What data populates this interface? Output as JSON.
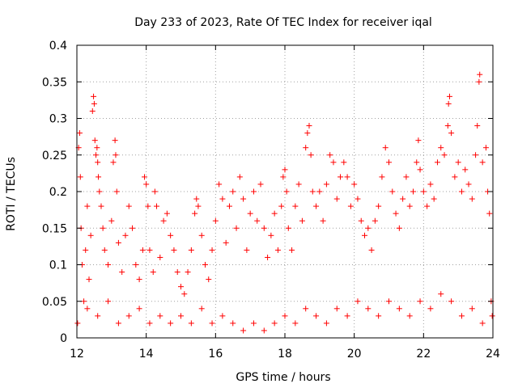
{
  "chart_data": {
    "type": "scatter",
    "title": "Day 233 of 2023, Rate Of TEC Index for receiver iqal",
    "xlabel": "GPS time / hours",
    "ylabel": "ROTI / TECUs",
    "xlim": [
      12,
      24
    ],
    "ylim": [
      0,
      0.4
    ],
    "x_ticks": [
      12,
      14,
      16,
      18,
      20,
      22,
      24
    ],
    "x_tick_labels": [
      "12",
      "14",
      "16",
      "18",
      "20",
      "22",
      "24"
    ],
    "y_ticks": [
      0,
      0.05,
      0.1,
      0.15,
      0.2,
      0.25,
      0.3,
      0.35,
      0.4
    ],
    "y_tick_labels": [
      "0",
      "0.05",
      "0.1",
      "0.15",
      "0.2",
      "0.25",
      "0.3",
      "0.35",
      "0.4"
    ],
    "grid": true,
    "marker": "+",
    "marker_color": "#ff0000",
    "series": [
      {
        "name": "ROTI",
        "points": [
          [
            12.05,
            0.26
          ],
          [
            12.08,
            0.28
          ],
          [
            12.1,
            0.22
          ],
          [
            12.12,
            0.15
          ],
          [
            12.15,
            0.1
          ],
          [
            12.2,
            0.05
          ],
          [
            12.25,
            0.12
          ],
          [
            12.3,
            0.18
          ],
          [
            12.35,
            0.08
          ],
          [
            12.4,
            0.14
          ],
          [
            12.45,
            0.31
          ],
          [
            12.48,
            0.33
          ],
          [
            12.5,
            0.32
          ],
          [
            12.52,
            0.27
          ],
          [
            12.55,
            0.25
          ],
          [
            12.58,
            0.26
          ],
          [
            12.6,
            0.24
          ],
          [
            12.62,
            0.22
          ],
          [
            12.65,
            0.2
          ],
          [
            12.7,
            0.18
          ],
          [
            12.75,
            0.15
          ],
          [
            12.8,
            0.12
          ],
          [
            12.9,
            0.1
          ],
          [
            13.0,
            0.16
          ],
          [
            13.05,
            0.24
          ],
          [
            13.1,
            0.27
          ],
          [
            13.12,
            0.25
          ],
          [
            13.15,
            0.2
          ],
          [
            13.2,
            0.13
          ],
          [
            13.3,
            0.09
          ],
          [
            13.4,
            0.14
          ],
          [
            13.5,
            0.18
          ],
          [
            13.6,
            0.15
          ],
          [
            13.7,
            0.1
          ],
          [
            13.8,
            0.08
          ],
          [
            13.9,
            0.12
          ],
          [
            13.95,
            0.22
          ],
          [
            14.0,
            0.21
          ],
          [
            14.05,
            0.18
          ],
          [
            14.1,
            0.12
          ],
          [
            14.2,
            0.09
          ],
          [
            14.25,
            0.2
          ],
          [
            14.3,
            0.18
          ],
          [
            14.4,
            0.11
          ],
          [
            14.5,
            0.16
          ],
          [
            14.6,
            0.17
          ],
          [
            14.7,
            0.14
          ],
          [
            14.8,
            0.12
          ],
          [
            14.9,
            0.09
          ],
          [
            15.0,
            0.07
          ],
          [
            15.1,
            0.06
          ],
          [
            15.2,
            0.09
          ],
          [
            15.3,
            0.12
          ],
          [
            15.4,
            0.17
          ],
          [
            15.45,
            0.19
          ],
          [
            15.5,
            0.18
          ],
          [
            15.6,
            0.14
          ],
          [
            15.7,
            0.1
          ],
          [
            15.8,
            0.08
          ],
          [
            15.9,
            0.12
          ],
          [
            16.0,
            0.16
          ],
          [
            16.1,
            0.21
          ],
          [
            16.2,
            0.19
          ],
          [
            16.3,
            0.13
          ],
          [
            16.4,
            0.18
          ],
          [
            16.5,
            0.2
          ],
          [
            16.6,
            0.15
          ],
          [
            16.7,
            0.22
          ],
          [
            16.8,
            0.19
          ],
          [
            16.9,
            0.12
          ],
          [
            17.0,
            0.17
          ],
          [
            17.1,
            0.2
          ],
          [
            17.2,
            0.16
          ],
          [
            17.3,
            0.21
          ],
          [
            17.4,
            0.15
          ],
          [
            17.5,
            0.11
          ],
          [
            17.6,
            0.14
          ],
          [
            17.7,
            0.17
          ],
          [
            17.8,
            0.12
          ],
          [
            17.9,
            0.18
          ],
          [
            17.95,
            0.22
          ],
          [
            18.0,
            0.23
          ],
          [
            18.05,
            0.2
          ],
          [
            18.1,
            0.15
          ],
          [
            18.2,
            0.12
          ],
          [
            18.3,
            0.18
          ],
          [
            18.4,
            0.21
          ],
          [
            18.5,
            0.16
          ],
          [
            18.6,
            0.26
          ],
          [
            18.65,
            0.28
          ],
          [
            18.7,
            0.29
          ],
          [
            18.75,
            0.25
          ],
          [
            18.8,
            0.2
          ],
          [
            18.9,
            0.18
          ],
          [
            19.0,
            0.2
          ],
          [
            19.1,
            0.16
          ],
          [
            19.2,
            0.21
          ],
          [
            19.3,
            0.25
          ],
          [
            19.4,
            0.24
          ],
          [
            19.5,
            0.19
          ],
          [
            19.6,
            0.22
          ],
          [
            19.7,
            0.24
          ],
          [
            19.8,
            0.22
          ],
          [
            19.9,
            0.18
          ],
          [
            20.0,
            0.21
          ],
          [
            20.1,
            0.19
          ],
          [
            20.2,
            0.16
          ],
          [
            20.3,
            0.14
          ],
          [
            20.4,
            0.15
          ],
          [
            20.5,
            0.12
          ],
          [
            20.6,
            0.16
          ],
          [
            20.7,
            0.18
          ],
          [
            20.8,
            0.22
          ],
          [
            20.9,
            0.26
          ],
          [
            21.0,
            0.24
          ],
          [
            21.1,
            0.2
          ],
          [
            21.2,
            0.17
          ],
          [
            21.3,
            0.15
          ],
          [
            21.4,
            0.19
          ],
          [
            21.5,
            0.22
          ],
          [
            21.6,
            0.18
          ],
          [
            21.7,
            0.2
          ],
          [
            21.8,
            0.24
          ],
          [
            21.85,
            0.27
          ],
          [
            21.9,
            0.23
          ],
          [
            22.0,
            0.2
          ],
          [
            22.1,
            0.18
          ],
          [
            22.2,
            0.21
          ],
          [
            22.3,
            0.19
          ],
          [
            22.4,
            0.24
          ],
          [
            22.5,
            0.26
          ],
          [
            22.6,
            0.25
          ],
          [
            22.7,
            0.29
          ],
          [
            22.72,
            0.32
          ],
          [
            22.75,
            0.33
          ],
          [
            22.8,
            0.28
          ],
          [
            22.9,
            0.22
          ],
          [
            23.0,
            0.24
          ],
          [
            23.1,
            0.2
          ],
          [
            23.2,
            0.23
          ],
          [
            23.3,
            0.21
          ],
          [
            23.4,
            0.19
          ],
          [
            23.5,
            0.25
          ],
          [
            23.55,
            0.29
          ],
          [
            23.6,
            0.35
          ],
          [
            23.62,
            0.36
          ],
          [
            23.7,
            0.24
          ],
          [
            23.8,
            0.26
          ],
          [
            23.85,
            0.2
          ],
          [
            23.9,
            0.17
          ],
          [
            23.95,
            0.05
          ],
          [
            12.02,
            0.02
          ],
          [
            12.3,
            0.04
          ],
          [
            12.6,
            0.03
          ],
          [
            12.9,
            0.05
          ],
          [
            13.2,
            0.02
          ],
          [
            13.5,
            0.03
          ],
          [
            13.8,
            0.04
          ],
          [
            14.1,
            0.02
          ],
          [
            14.4,
            0.03
          ],
          [
            14.7,
            0.02
          ],
          [
            15.0,
            0.03
          ],
          [
            15.3,
            0.02
          ],
          [
            15.6,
            0.04
          ],
          [
            15.9,
            0.02
          ],
          [
            16.2,
            0.03
          ],
          [
            16.5,
            0.02
          ],
          [
            16.8,
            0.01
          ],
          [
            17.1,
            0.02
          ],
          [
            17.4,
            0.01
          ],
          [
            17.7,
            0.02
          ],
          [
            18.0,
            0.03
          ],
          [
            18.3,
            0.02
          ],
          [
            18.6,
            0.04
          ],
          [
            18.9,
            0.03
          ],
          [
            19.2,
            0.02
          ],
          [
            19.5,
            0.04
          ],
          [
            19.8,
            0.03
          ],
          [
            20.1,
            0.05
          ],
          [
            20.4,
            0.04
          ],
          [
            20.7,
            0.03
          ],
          [
            21.0,
            0.05
          ],
          [
            21.3,
            0.04
          ],
          [
            21.6,
            0.03
          ],
          [
            21.9,
            0.05
          ],
          [
            22.2,
            0.04
          ],
          [
            22.5,
            0.06
          ],
          [
            22.8,
            0.05
          ],
          [
            23.1,
            0.03
          ],
          [
            23.4,
            0.04
          ],
          [
            23.7,
            0.02
          ],
          [
            23.98,
            0.03
          ]
        ]
      }
    ]
  }
}
